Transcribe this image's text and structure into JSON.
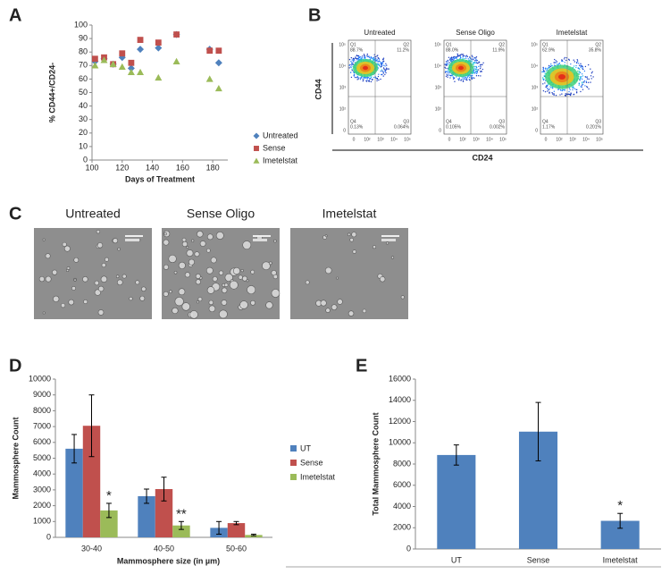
{
  "panel_labels": [
    "A",
    "B",
    "C",
    "D",
    "E"
  ],
  "chart_data": [
    {
      "type": "scatter",
      "x_label": "Days of Treatment",
      "y_label": "% CD44+/CD24-",
      "x": [
        102,
        108,
        114,
        120,
        126,
        132,
        144,
        156,
        178,
        184
      ],
      "series": [
        {
          "name": "Untreated",
          "color": "#4f81bd",
          "marker": "diamond",
          "values": [
            73,
            75,
            71,
            76,
            68,
            82,
            83,
            93,
            82,
            72
          ]
        },
        {
          "name": "Sense",
          "color": "#c0504d",
          "marker": "square",
          "values": [
            75,
            76,
            71,
            79,
            72,
            89,
            87,
            93,
            81,
            81
          ]
        },
        {
          "name": "Imetelstat",
          "color": "#9bbb59",
          "marker": "triangle",
          "values": [
            70,
            74,
            71,
            69,
            65,
            65,
            61,
            73,
            60,
            53
          ]
        }
      ],
      "xlim": [
        100,
        190
      ],
      "xticks": [
        100,
        120,
        140,
        160,
        180
      ],
      "ylim": [
        0,
        100
      ],
      "yticks": [
        0,
        10,
        20,
        30,
        40,
        50,
        60,
        70,
        80,
        90,
        100
      ],
      "legend": "right"
    },
    {
      "type": "bar",
      "x_label": "Mammosphere size (in µm)",
      "y_label": "Mammosphere Count",
      "categories": [
        "30-40",
        "40-50",
        "50-60"
      ],
      "series": [
        {
          "name": "UT",
          "color": "#4f81bd",
          "values": [
            5600,
            2600,
            600
          ],
          "errors": [
            900,
            450,
            400
          ]
        },
        {
          "name": "Sense",
          "color": "#c0504d",
          "values": [
            7050,
            3050,
            900
          ],
          "errors": [
            1950,
            750,
            100
          ]
        },
        {
          "name": "Imetelstat",
          "color": "#9bbb59",
          "values": [
            1700,
            750,
            150
          ],
          "errors": [
            450,
            250,
            50
          ]
        }
      ],
      "annotations": [
        "*",
        "**"
      ],
      "ylim": [
        0,
        10000
      ],
      "yticks": [
        0,
        1000,
        2000,
        3000,
        4000,
        5000,
        6000,
        7000,
        8000,
        9000,
        10000
      ],
      "legend": "right"
    },
    {
      "type": "bar",
      "y_label": "Total Mammosphere Count",
      "categories": [
        "UT",
        "Sense",
        "Imetelstat"
      ],
      "series": [
        {
          "color": "#4f81bd",
          "values": [
            8850,
            11050,
            2650
          ],
          "errors": [
            950,
            2750,
            700
          ]
        }
      ],
      "annotations": [
        "*"
      ],
      "ylim": [
        0,
        16000
      ],
      "yticks": [
        0,
        2000,
        4000,
        6000,
        8000,
        10000,
        12000,
        14000,
        16000
      ]
    }
  ],
  "flow": {
    "y_label": "CD44",
    "x_label": "CD24",
    "axis_ticks": [
      "0",
      "10²",
      "10³",
      "10⁴",
      "10⁵"
    ],
    "plots": [
      {
        "title": "Untreated",
        "q1": "Q1",
        "q1_value": "88.7%",
        "q2": "Q2",
        "q2_value": "11.2%",
        "q4": "Q4",
        "q4_value": "0.13%",
        "q3": "Q3",
        "q3_value": "0.064%"
      },
      {
        "title": "Sense Oligo",
        "q1": "Q1",
        "q1_value": "88.0%",
        "q2": "Q2",
        "q2_value": "11.9%",
        "q4": "Q4",
        "q4_value": "0.105%",
        "q3": "Q3",
        "q3_value": "0.002%"
      },
      {
        "title": "Imetelstat",
        "q1": "Q1",
        "q1_value": "62.9%",
        "q2": "Q2",
        "q2_value": "35.8%",
        "q4": "Q4",
        "q4_value": "1.17%",
        "q3": "Q3",
        "q3_value": "0.201%"
      }
    ]
  },
  "micrographs": {
    "titles": [
      "Untreated",
      "Sense Oligo",
      "Imetelstat"
    ]
  }
}
